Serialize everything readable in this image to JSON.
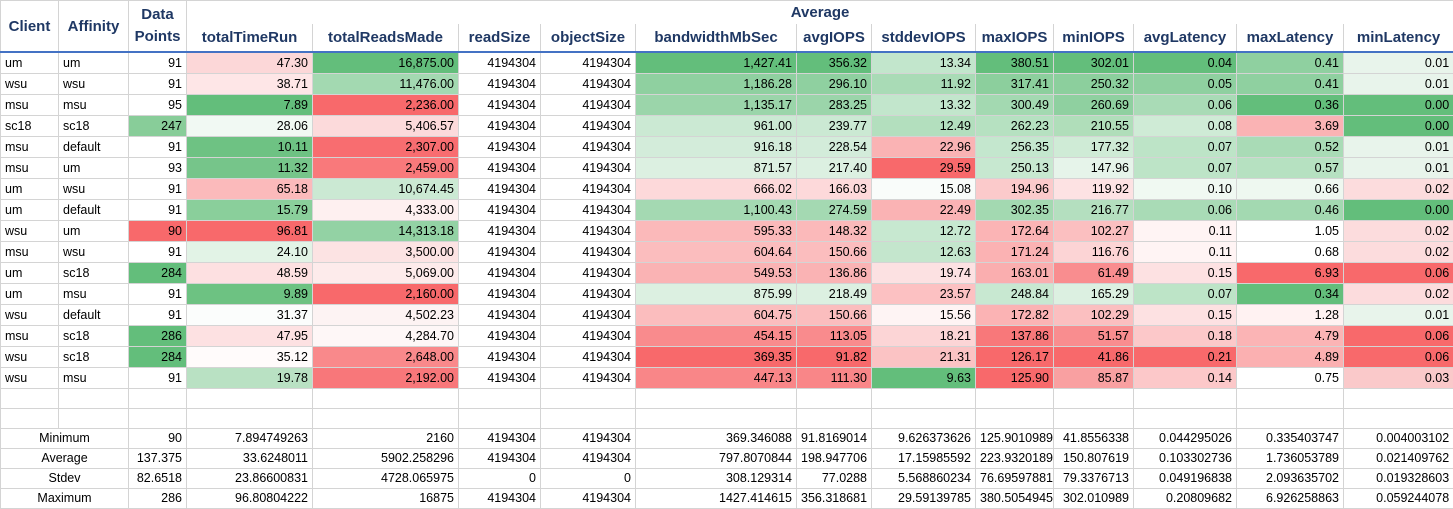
{
  "headers": {
    "client": "Client",
    "affinity": "Affinity",
    "data_points": "Data Points",
    "group": "Average",
    "metrics": [
      "totalTimeRun",
      "totalReadsMade",
      "readSize",
      "objectSize",
      "bandwidthMbSec",
      "avgIOPS",
      "stddevIOPS",
      "maxIOPS",
      "minIOPS",
      "avgLatency",
      "maxLatency",
      "minLatency"
    ]
  },
  "rows": [
    [
      "um",
      "um",
      "91",
      "47.30",
      "16,875.00",
      "4194304",
      "4194304",
      "1,427.41",
      "356.32",
      "13.34",
      "380.51",
      "302.01",
      "0.04",
      "0.41",
      "0.01"
    ],
    [
      "wsu",
      "wsu",
      "91",
      "38.71",
      "11,476.00",
      "4194304",
      "4194304",
      "1,186.28",
      "296.10",
      "11.92",
      "317.41",
      "250.32",
      "0.05",
      "0.41",
      "0.01"
    ],
    [
      "msu",
      "msu",
      "95",
      "7.89",
      "2,236.00",
      "4194304",
      "4194304",
      "1,135.17",
      "283.25",
      "13.32",
      "300.49",
      "260.69",
      "0.06",
      "0.36",
      "0.00"
    ],
    [
      "sc18",
      "sc18",
      "247",
      "28.06",
      "5,406.57",
      "4194304",
      "4194304",
      "961.00",
      "239.77",
      "12.49",
      "262.23",
      "210.55",
      "0.08",
      "3.69",
      "0.00"
    ],
    [
      "msu",
      "default",
      "91",
      "10.11",
      "2,307.00",
      "4194304",
      "4194304",
      "916.18",
      "228.54",
      "22.96",
      "256.35",
      "177.32",
      "0.07",
      "0.52",
      "0.01"
    ],
    [
      "msu",
      "um",
      "93",
      "11.32",
      "2,459.00",
      "4194304",
      "4194304",
      "871.57",
      "217.40",
      "29.59",
      "250.13",
      "147.96",
      "0.07",
      "0.57",
      "0.01"
    ],
    [
      "um",
      "wsu",
      "91",
      "65.18",
      "10,674.45",
      "4194304",
      "4194304",
      "666.02",
      "166.03",
      "15.08",
      "194.96",
      "119.92",
      "0.10",
      "0.66",
      "0.02"
    ],
    [
      "um",
      "default",
      "91",
      "15.79",
      "4,333.00",
      "4194304",
      "4194304",
      "1,100.43",
      "274.59",
      "22.49",
      "302.35",
      "216.77",
      "0.06",
      "0.46",
      "0.00"
    ],
    [
      "wsu",
      "um",
      "90",
      "96.81",
      "14,313.18",
      "4194304",
      "4194304",
      "595.33",
      "148.32",
      "12.72",
      "172.64",
      "102.27",
      "0.11",
      "1.05",
      "0.02"
    ],
    [
      "msu",
      "wsu",
      "91",
      "24.10",
      "3,500.00",
      "4194304",
      "4194304",
      "604.64",
      "150.66",
      "12.63",
      "171.24",
      "116.76",
      "0.11",
      "0.68",
      "0.02"
    ],
    [
      "um",
      "sc18",
      "284",
      "48.59",
      "5,069.00",
      "4194304",
      "4194304",
      "549.53",
      "136.86",
      "19.74",
      "163.01",
      "61.49",
      "0.15",
      "6.93",
      "0.06"
    ],
    [
      "um",
      "msu",
      "91",
      "9.89",
      "2,160.00",
      "4194304",
      "4194304",
      "875.99",
      "218.49",
      "23.57",
      "248.84",
      "165.29",
      "0.07",
      "0.34",
      "0.02"
    ],
    [
      "wsu",
      "default",
      "91",
      "31.37",
      "4,502.23",
      "4194304",
      "4194304",
      "604.75",
      "150.66",
      "15.56",
      "172.82",
      "102.29",
      "0.15",
      "1.28",
      "0.01"
    ],
    [
      "msu",
      "sc18",
      "286",
      "47.95",
      "4,284.70",
      "4194304",
      "4194304",
      "454.15",
      "113.05",
      "18.21",
      "137.86",
      "51.57",
      "0.18",
      "4.79",
      "0.06"
    ],
    [
      "wsu",
      "sc18",
      "284",
      "35.12",
      "2,648.00",
      "4194304",
      "4194304",
      "369.35",
      "91.82",
      "21.31",
      "126.17",
      "41.86",
      "0.21",
      "4.89",
      "0.06"
    ],
    [
      "wsu",
      "msu",
      "91",
      "19.78",
      "2,192.00",
      "4194304",
      "4194304",
      "447.13",
      "111.30",
      "9.63",
      "125.90",
      "85.87",
      "0.14",
      "0.75",
      "0.03"
    ]
  ],
  "colors": [
    [
      "#ffffff",
      "#ffffff",
      "#ffffff",
      "#fcd7d8",
      "#63be7b",
      "#ffffff",
      "#ffffff",
      "#63be7b",
      "#63be7b",
      "#c2e6cc",
      "#63be7b",
      "#63be7b",
      "#63be7b",
      "#8fd0a0",
      "#e8f4eb"
    ],
    [
      "#ffffff",
      "#ffffff",
      "#ffffff",
      "#fee6e7",
      "#a3d9b1",
      "#ffffff",
      "#ffffff",
      "#8fd0a0",
      "#8fd0a0",
      "#a9dbb6",
      "#8ccf9d",
      "#8ccf9d",
      "#8fd0a0",
      "#8fd0a0",
      "#e8f4eb"
    ],
    [
      "#ffffff",
      "#ffffff",
      "#ffffff",
      "#63be7b",
      "#f8696b",
      "#ffffff",
      "#ffffff",
      "#9bd5aa",
      "#9bd5aa",
      "#c2e6cc",
      "#a3d9b1",
      "#8fd0a0",
      "#a9dbb6",
      "#63be7b",
      "#63be7b"
    ],
    [
      "#ffffff",
      "#ffffff",
      "#88cd99",
      "#f1f9f3",
      "#fcdadb",
      "#ffffff",
      "#ffffff",
      "#cbe9d3",
      "#cbe9d3",
      "#b3dfbe",
      "#b6e1c1",
      "#b0deba",
      "#cfebd6",
      "#fab3b4",
      "#63be7b"
    ],
    [
      "#ffffff",
      "#ffffff",
      "#ffffff",
      "#6ec283",
      "#f86d70",
      "#ffffff",
      "#ffffff",
      "#d3ecda",
      "#d3ecda",
      "#fab3b4",
      "#c4e7ce",
      "#cfebd6",
      "#bde4c7",
      "#a9dbb6",
      "#e8f4eb"
    ],
    [
      "#ffffff",
      "#ffffff",
      "#ffffff",
      "#76c58a",
      "#f9797b",
      "#ffffff",
      "#ffffff",
      "#dcf0e1",
      "#dcf0e1",
      "#f8696b",
      "#c7e8d0",
      "#e6f4ea",
      "#bde4c7",
      "#b6e1c1",
      "#e8f4eb"
    ],
    [
      "#ffffff",
      "#ffffff",
      "#ffffff",
      "#fbbabb",
      "#cbe9d3",
      "#ffffff",
      "#ffffff",
      "#fdd9da",
      "#fdd9da",
      "#f9fcfa",
      "#fbcacb",
      "#fde2e3",
      "#f0f9f2",
      "#eef8f0",
      "#fcdcdd"
    ],
    [
      "#ffffff",
      "#ffffff",
      "#ffffff",
      "#8acf9b",
      "#fef0f0",
      "#ffffff",
      "#ffffff",
      "#a4d9b2",
      "#a4d9b2",
      "#fab3b4",
      "#a3d9b1",
      "#b4dfbf",
      "#a9dbb6",
      "#a3d9b1",
      "#63be7b"
    ],
    [
      "#ffffff",
      "#ffffff",
      "#f8696b",
      "#f8696b",
      "#93d2a4",
      "#ffffff",
      "#ffffff",
      "#fbb9ba",
      "#fbb9ba",
      "#c7e8d0",
      "#fbb4b5",
      "#fbbfc0",
      "#fff4f4",
      "#ffffff",
      "#fcdcdd"
    ],
    [
      "#ffffff",
      "#ffffff",
      "#ffffff",
      "#e2f3e6",
      "#fce3e3",
      "#ffffff",
      "#ffffff",
      "#fbbdbe",
      "#fbbdbe",
      "#c4e6cd",
      "#fbb2b3",
      "#fcd4d5",
      "#fff4f4",
      "#ffffff",
      "#fcdcdd"
    ],
    [
      "#ffffff",
      "#ffffff",
      "#63be7b",
      "#fde0e1",
      "#fdebeb",
      "#ffffff",
      "#ffffff",
      "#fab3b4",
      "#fab3b4",
      "#fce1e2",
      "#faaeaf",
      "#f98d8f",
      "#fde1e2",
      "#f8696b",
      "#f8696b"
    ],
    [
      "#ffffff",
      "#ffffff",
      "#ffffff",
      "#6dc282",
      "#f8696b",
      "#ffffff",
      "#ffffff",
      "#dcf0e1",
      "#dcf0e1",
      "#fcc1c2",
      "#c8e8d1",
      "#dcf0e1",
      "#bde4c7",
      "#63be7b",
      "#fcdcdd"
    ],
    [
      "#ffffff",
      "#ffffff",
      "#ffffff",
      "#fbfdfc",
      "#fdf3f3",
      "#ffffff",
      "#ffffff",
      "#fbbdbe",
      "#fbbdbe",
      "#fef4f4",
      "#fbb3b4",
      "#fbbfc0",
      "#fde1e2",
      "#fff2f2",
      "#e8f4eb"
    ],
    [
      "#ffffff",
      "#ffffff",
      "#63be7b",
      "#fde1e2",
      "#fef7f7",
      "#ffffff",
      "#ffffff",
      "#f98b8d",
      "#f98b8d",
      "#fcd5d6",
      "#f8787a",
      "#f98d8f",
      "#fcc8c9",
      "#fbb4b5",
      "#f8696b"
    ],
    [
      "#ffffff",
      "#ffffff",
      "#63be7b",
      "#fffbfb",
      "#f9898b",
      "#ffffff",
      "#ffffff",
      "#f8696b",
      "#f8696b",
      "#fbc3c4",
      "#f8696b",
      "#f8696b",
      "#f8696b",
      "#fbb0b1",
      "#f8696b"
    ],
    [
      "#ffffff",
      "#ffffff",
      "#ffffff",
      "#b9e1c3",
      "#f8777a",
      "#ffffff",
      "#ffffff",
      "#f98688",
      "#f98688",
      "#63be7b",
      "#f8696b",
      "#f9a0a1",
      "#fcc8c9",
      "#ffffff",
      "#fac9ca"
    ]
  ],
  "stats": [
    [
      "Minimum",
      "90",
      "7.894749263",
      "2160",
      "4194304",
      "4194304",
      "369.346088",
      "91.8169014",
      "9.626373626",
      "125.9010989",
      "41.8556338",
      "0.044295026",
      "0.335403747",
      "0.004003102"
    ],
    [
      "Average",
      "137.375",
      "33.6248011",
      "5902.258296",
      "4194304",
      "4194304",
      "797.8070844",
      "198.947706",
      "17.15985592",
      "223.9320189",
      "150.807619",
      "0.103302736",
      "1.736053789",
      "0.021409762"
    ],
    [
      "Stdev",
      "82.6518",
      "23.86600831",
      "4728.065975",
      "0",
      "0",
      "308.129314",
      "77.0288",
      "5.568860234",
      "76.69597881",
      "79.3376713",
      "0.049196838",
      "2.093635702",
      "0.019328603"
    ],
    [
      "Maximum",
      "286",
      "96.80804222",
      "16875",
      "4194304",
      "4194304",
      "1427.414615",
      "356.318681",
      "29.59139785",
      "380.5054945",
      "302.010989",
      "0.20809682",
      "6.926258863",
      "0.059244078"
    ]
  ]
}
